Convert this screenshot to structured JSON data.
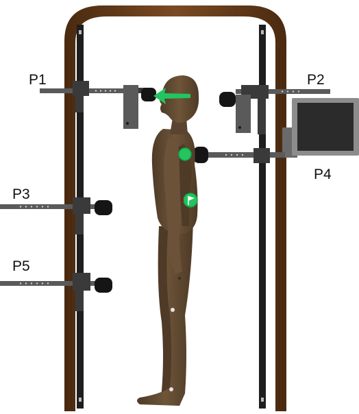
{
  "figure": {
    "labels": {
      "p1": "P1",
      "p2": "P2",
      "p3": "P3",
      "p4": "P4",
      "p5": "P5"
    },
    "colors": {
      "frame_wood": "#6b3f1d",
      "frame_wood_dark": "#4a2a10",
      "rail": "#1e1e1e",
      "bracket": "#5a5a5a",
      "bracket_dark": "#3a3a3a",
      "pad": "#151515",
      "mannequin": "#6b5238",
      "mannequin_shadow": "#4e3a27",
      "monitor_body": "#8c8c8c",
      "monitor_screen": "#2b2b2b",
      "marker_green": "#22c55e",
      "marker_green_dark": "#16a34a"
    },
    "icons": [
      "head-arrow-marker",
      "shoulder-dot-marker",
      "hip-flag-marker"
    ]
  }
}
